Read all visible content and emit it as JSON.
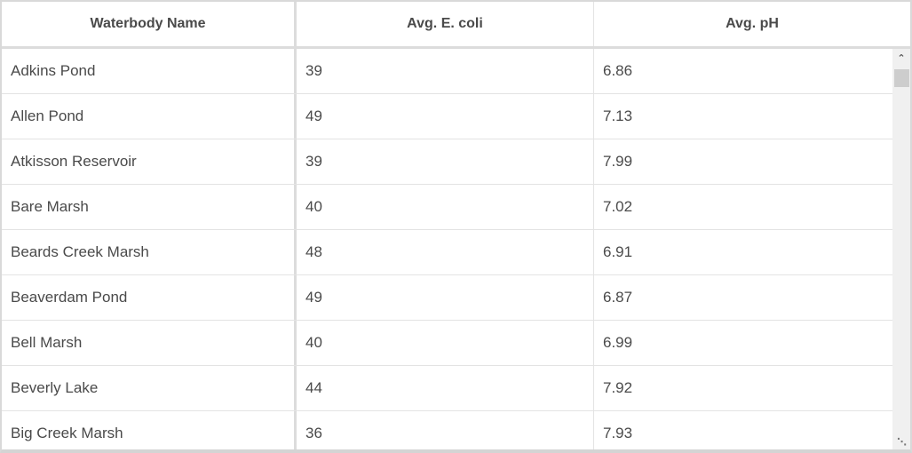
{
  "table": {
    "columns": [
      "Waterbody Name",
      "Avg. E. coli",
      "Avg. pH"
    ],
    "rows": [
      [
        "Adkins Pond",
        "39",
        "6.86"
      ],
      [
        "Allen Pond",
        "49",
        "7.13"
      ],
      [
        "Atkisson Reservoir",
        "39",
        "7.99"
      ],
      [
        "Bare Marsh",
        "40",
        "7.02"
      ],
      [
        "Beards Creek Marsh",
        "48",
        "6.91"
      ],
      [
        "Beaverdam Pond",
        "49",
        "6.87"
      ],
      [
        "Bell Marsh",
        "40",
        "6.99"
      ],
      [
        "Beverly Lake",
        "44",
        "7.92"
      ],
      [
        "Big Creek Marsh",
        "36",
        "7.93"
      ]
    ]
  },
  "scrollbar": {
    "up_icon": "chevron-up-icon",
    "resize_icon": "resize-grip-icon",
    "scroll_position": 0
  }
}
